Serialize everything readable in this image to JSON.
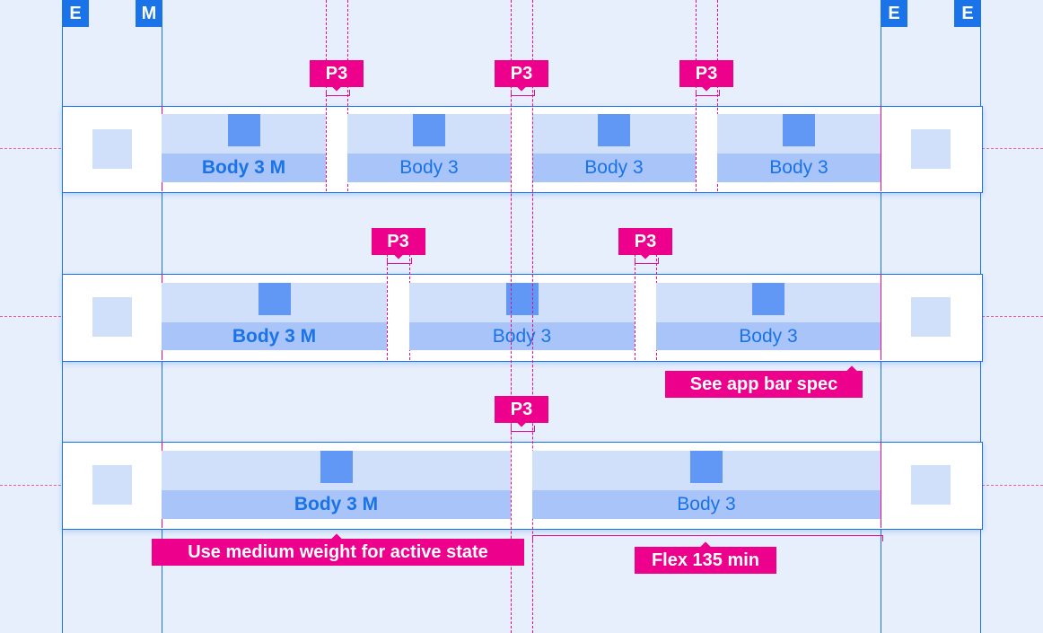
{
  "badges": [
    "E",
    "M",
    "E",
    "E"
  ],
  "rows": [
    {
      "tabs": [
        {
          "label": "Body 3 M",
          "active": true
        },
        {
          "label": "Body 3"
        },
        {
          "label": "Body 3"
        },
        {
          "label": "Body 3"
        }
      ],
      "gap_labels": [
        "P3",
        "P3",
        "P3"
      ]
    },
    {
      "tabs": [
        {
          "label": "Body 3 M",
          "active": true
        },
        {
          "label": "Body 3"
        },
        {
          "label": "Body 3"
        }
      ],
      "gap_labels": [
        "P3",
        "P3"
      ]
    },
    {
      "tabs": [
        {
          "label": "Body 3 M",
          "active": true
        },
        {
          "label": "Body 3"
        }
      ],
      "gap_labels": [
        "P3"
      ]
    }
  ],
  "annotations": {
    "app_bar": "See app bar spec",
    "medium_weight": "Use medium weight for active state",
    "flex_min": "Flex 135 min"
  },
  "colors": {
    "background": "#e8effc",
    "guide_blue": "#1a73e8",
    "spec_pink": "#ec008c",
    "tab_light": "#d0e0fa",
    "tab_label": "#a8c4f8",
    "icon": "#6197f5"
  }
}
